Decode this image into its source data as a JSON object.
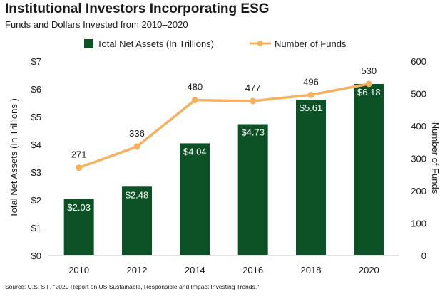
{
  "title": "Institutional Investors Incorporating ESG",
  "subtitle": "Funds and Dollars Invested from 2010–2020",
  "source": "Source:  U.S. SIF. \"2020 Report on US Sustainable, Responsible and Impact Investing Trends.\"",
  "chart_data": {
    "type": "bar",
    "categories": [
      "2010",
      "2012",
      "2014",
      "2016",
      "2018",
      "2020"
    ],
    "series": [
      {
        "name": "Total Net Assets (In Trillions)",
        "type": "bar",
        "axis": "left",
        "values": [
          2.03,
          2.48,
          4.04,
          4.73,
          5.61,
          6.18
        ],
        "labels": [
          "$2.03",
          "$2.48",
          "$4.04",
          "$4.73",
          "$5.61",
          "$6.18"
        ],
        "color": "#0d5227"
      },
      {
        "name": "Number of Funds",
        "type": "line",
        "axis": "right",
        "values": [
          271,
          336,
          480,
          477,
          496,
          530
        ],
        "labels": [
          "271",
          "336",
          "480",
          "477",
          "496",
          "530"
        ],
        "color": "#f5b060"
      }
    ],
    "y_left": {
      "label": "Total Net Assets (In Trillions )",
      "ylim": [
        0,
        7
      ],
      "ticks": [
        "$0",
        "$1",
        "$2",
        "$3",
        "$4",
        "$5",
        "$6",
        "$7"
      ]
    },
    "y_right": {
      "label": "Number of Funds",
      "ylim": [
        0,
        600
      ],
      "ticks": [
        "0",
        "100",
        "200",
        "300",
        "400",
        "500",
        "600"
      ]
    },
    "grid": false,
    "legend_position": "top"
  }
}
